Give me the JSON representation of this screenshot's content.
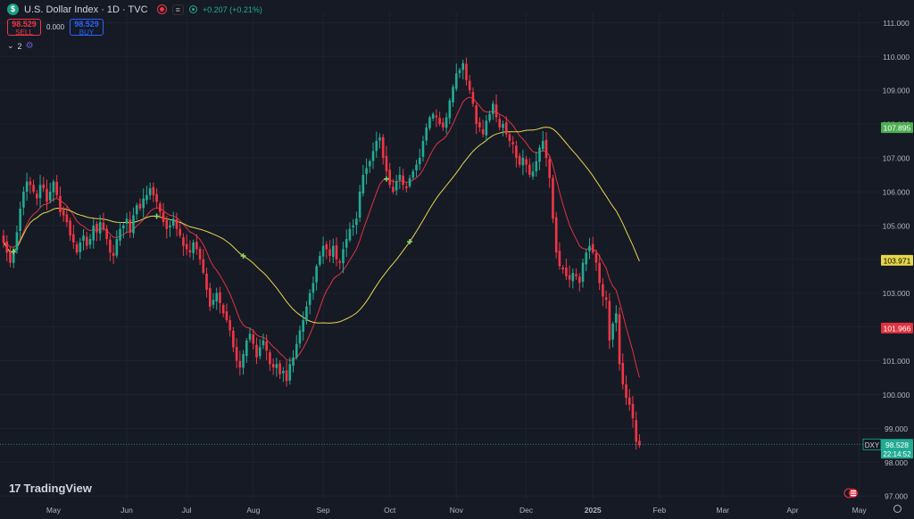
{
  "header": {
    "symbol_icon": "dollar-sign-icon",
    "title": "U.S. Dollar Index · 1D · TVC",
    "closed_label": "≡",
    "change": "+0.207 (+0.21%)"
  },
  "trade": {
    "sell_price": "98.529",
    "sell_label": "SELL",
    "spread": "0.000",
    "buy_price": "98.529",
    "buy_label": "BUY"
  },
  "indicators": {
    "count": "2"
  },
  "brand": "TradingView",
  "colors": {
    "background": "#161a25",
    "up": "#22ab94",
    "down": "#f23645",
    "ma_fast": "#e0323f",
    "ma_slow": "#e5d64b"
  },
  "chart_data": {
    "type": "candlestick",
    "symbol": "DXY",
    "ylim": [
      96.9,
      111.3
    ],
    "yticks": [
      "111.000",
      "110.000",
      "109.000",
      "108.000",
      "107.000",
      "106.000",
      "105.000",
      "104.000",
      "103.000",
      "102.000",
      "101.000",
      "100.000",
      "99.000",
      "98.000",
      "97.000"
    ],
    "xticks": [
      {
        "label": "May",
        "idx": 15
      },
      {
        "label": "Jun",
        "idx": 37
      },
      {
        "label": "Jul",
        "idx": 55
      },
      {
        "label": "Aug",
        "idx": 75
      },
      {
        "label": "Sep",
        "idx": 96
      },
      {
        "label": "Oct",
        "idx": 116
      },
      {
        "label": "Nov",
        "idx": 136
      },
      {
        "label": "Dec",
        "idx": 157
      },
      {
        "label": "2025",
        "idx": 177
      },
      {
        "label": "Feb",
        "idx": 197
      },
      {
        "label": "Mar",
        "idx": 216
      },
      {
        "label": "Apr",
        "idx": 237
      },
      {
        "label": "May",
        "idx": 257
      }
    ],
    "closes": [
      104.5,
      104.2,
      103.9,
      104.3,
      104.8,
      105.5,
      106.0,
      106.3,
      106.2,
      106.0,
      105.8,
      106.2,
      106.1,
      105.7,
      106.0,
      106.3,
      105.9,
      105.4,
      105.3,
      105.1,
      104.7,
      104.5,
      104.2,
      104.5,
      104.7,
      104.4,
      104.6,
      105.0,
      104.8,
      105.1,
      104.9,
      104.6,
      104.2,
      104.1,
      104.6,
      104.9,
      105.0,
      105.2,
      104.8,
      105.3,
      105.6,
      105.5,
      105.8,
      105.9,
      106.1,
      105.9,
      105.7,
      105.4,
      105.1,
      104.9,
      105.0,
      105.2,
      104.9,
      104.7,
      104.4,
      104.3,
      104.2,
      104.5,
      104.3,
      104.0,
      103.6,
      103.1,
      102.6,
      102.8,
      103.0,
      102.7,
      102.4,
      102.2,
      101.9,
      101.4,
      101.0,
      100.8,
      101.2,
      101.6,
      101.8,
      101.5,
      101.1,
      101.4,
      101.6,
      101.3,
      100.9,
      100.8,
      100.9,
      100.6,
      100.7,
      100.4,
      100.9,
      101.1,
      101.5,
      101.9,
      102.2,
      102.6,
      103.0,
      103.3,
      103.8,
      104.1,
      104.4,
      104.3,
      104.1,
      104.4,
      104.0,
      103.9,
      104.3,
      104.6,
      104.9,
      105.0,
      105.2,
      106.0,
      106.5,
      106.7,
      106.9,
      107.2,
      107.5,
      107.6,
      107.0,
      106.6,
      106.2,
      106.0,
      106.3,
      106.5,
      106.2,
      106.1,
      106.4,
      106.6,
      106.8,
      107.0,
      107.5,
      107.9,
      108.2,
      108.3,
      108.2,
      108.0,
      107.9,
      108.2,
      108.7,
      109.1,
      109.5,
      109.6,
      109.8,
      109.3,
      109.0,
      108.6,
      108.0,
      107.9,
      107.7,
      108.1,
      108.3,
      108.6,
      108.2,
      107.9,
      108.0,
      107.7,
      107.5,
      107.4,
      107.0,
      106.8,
      107.0,
      106.8,
      106.5,
      106.6,
      106.9,
      107.3,
      107.5,
      107.0,
      106.4,
      105.2,
      104.2,
      103.8,
      103.7,
      103.5,
      103.4,
      103.6,
      103.5,
      103.3,
      103.9,
      104.2,
      104.4,
      104.2,
      103.9,
      103.3,
      102.9,
      102.8,
      101.6,
      102.1,
      102.4,
      100.9,
      100.3,
      99.9,
      99.7,
      99.3,
      98.6,
      98.5
    ],
    "series": [
      {
        "name": "MA fast",
        "final": "101.966"
      },
      {
        "name": "MA slow",
        "final": "103.971"
      }
    ],
    "markers": [
      {
        "idx": 3,
        "line": "slow"
      },
      {
        "idx": 46,
        "line": "slow"
      },
      {
        "idx": 72,
        "line": "slow"
      },
      {
        "idx": 115,
        "line": "fast"
      },
      {
        "idx": 122,
        "line": "slow"
      },
      {
        "idx": 200,
        "line": "slow"
      }
    ],
    "price_labels": [
      {
        "value": 107.895,
        "text": "107.895",
        "color": "#4caf50",
        "text_color": "#ffffff"
      },
      {
        "value": 103.971,
        "text": "103.971",
        "color": "#e5d64b",
        "text_color": "#000000"
      },
      {
        "value": 101.966,
        "text": "101.966",
        "color": "#e0323f",
        "text_color": "#ffffff"
      }
    ],
    "last": {
      "symbol": "DXY",
      "value": 98.528,
      "text": "98.528",
      "countdown": "22:14:52"
    }
  }
}
